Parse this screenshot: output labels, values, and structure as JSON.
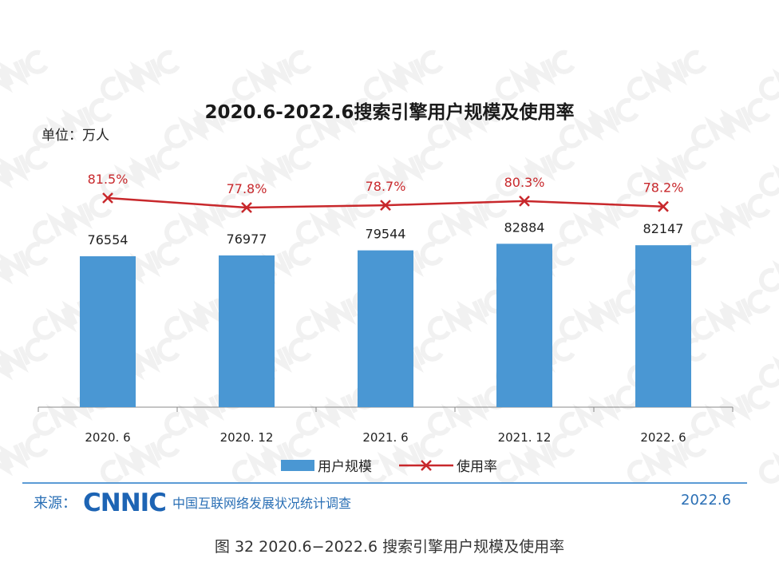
{
  "chart_data": {
    "type": "bar+line",
    "title": "2020.6-2022.6搜索引擎用户规模及使用率",
    "unit_label": "单位：万人",
    "categories": [
      "2020. 6",
      "2020. 12",
      "2021. 6",
      "2021. 12",
      "2022. 6"
    ],
    "series": [
      {
        "name": "用户规模",
        "type": "bar",
        "values": [
          76554,
          76977,
          79544,
          82884,
          82147
        ],
        "labels": [
          "76554",
          "76977",
          "79544",
          "82884",
          "82147"
        ],
        "color": "#4a97d3"
      },
      {
        "name": "使用率",
        "type": "line",
        "values": [
          81.5,
          77.8,
          78.7,
          80.3,
          78.2
        ],
        "labels": [
          "81.5%",
          "77.8%",
          "78.7%",
          "80.3%",
          "78.2%"
        ],
        "color": "#c8282c"
      }
    ],
    "ylim_bar": [
      0,
      100000
    ],
    "grid": false,
    "legend": "bottom-center"
  },
  "watermark": "CNNIC",
  "source": {
    "prefix": "来源：",
    "logo": "CNNIC",
    "name": "中国互联网络发展状况统计调查",
    "date": "2022.6"
  },
  "caption": "图 32  2020.6−2022.6 搜索引擎用户规模及使用率"
}
